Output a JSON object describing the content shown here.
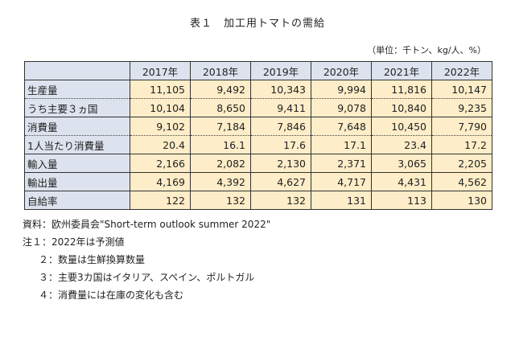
{
  "title": "表１　加工用トマトの需給",
  "unit": "（単位：千トン、kg/人、%）",
  "table": {
    "years": [
      "2017年",
      "2018年",
      "2019年",
      "2020年",
      "2021年",
      "2022年"
    ],
    "rows": [
      {
        "label": "生産量",
        "values": [
          "11,105",
          "9,492",
          "10,343",
          "9,994",
          "11,816",
          "10,147"
        ]
      },
      {
        "label": "うち主要３ヵ国",
        "values": [
          "10,104",
          "8,650",
          "9,411",
          "9,078",
          "10,840",
          "9,235"
        ]
      },
      {
        "label": "消費量",
        "values": [
          "9,102",
          "7,184",
          "7,846",
          "7,648",
          "10,450",
          "7,790"
        ]
      },
      {
        "label": "1人当たり消費量",
        "values": [
          "20.4",
          "16.1",
          "17.6",
          "17.1",
          "23.4",
          "17.2"
        ]
      },
      {
        "label": "輸入量",
        "values": [
          "2,166",
          "2,082",
          "2,130",
          "2,371",
          "3,065",
          "2,205"
        ]
      },
      {
        "label": "輸出量",
        "values": [
          "4,169",
          "4,392",
          "4,627",
          "4,717",
          "4,431",
          "4,562"
        ]
      },
      {
        "label": "自給率",
        "values": [
          "122",
          "132",
          "132",
          "131",
          "113",
          "130"
        ]
      }
    ]
  },
  "notes": {
    "source": "資料：欧州委員会\"Short-term outlook summer 2022\"",
    "note1": "注１：2022年は予測値",
    "note2": "２：数量は生鮮換算数量",
    "note3": "３：主要3カ国はイタリア、スペイン、ポルトガル",
    "note4": "４：消費量には在庫の変化も含む"
  }
}
